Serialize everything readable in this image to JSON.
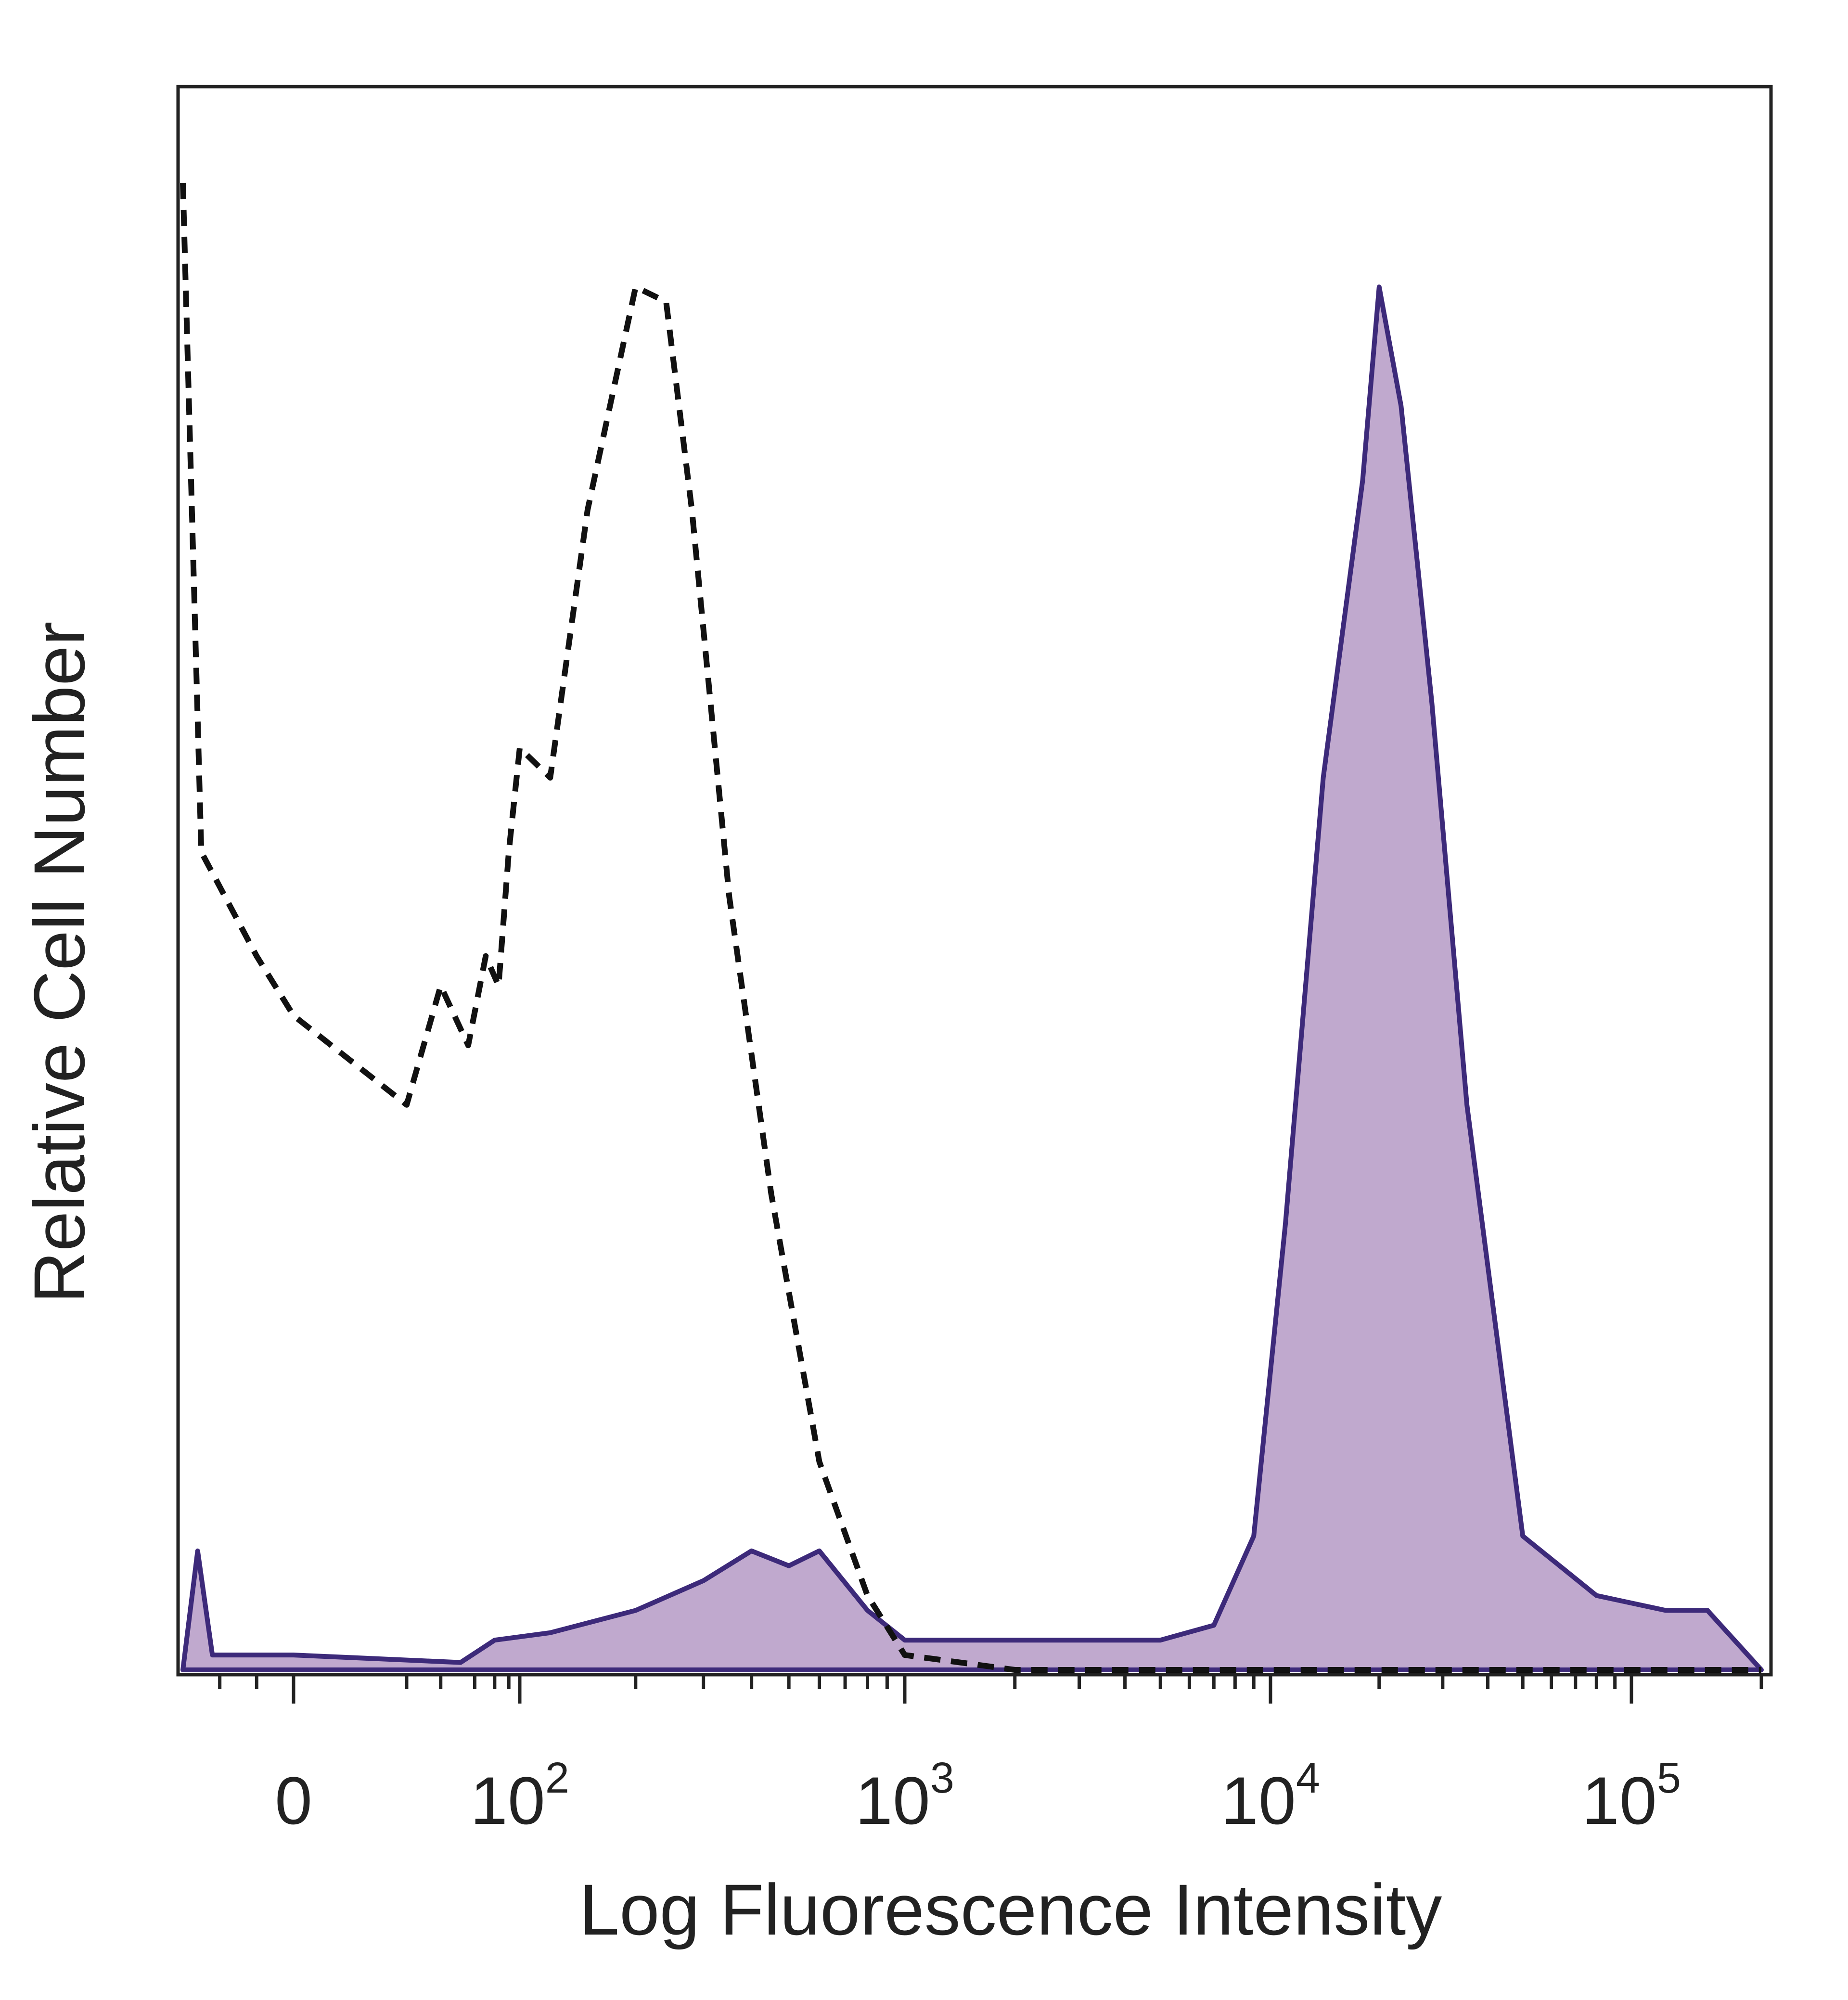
{
  "chart_data": {
    "type": "area",
    "title": "",
    "xlabel": "Log Fluorescence Intensity",
    "ylabel": "Relative Cell Number",
    "x_scale": "biexponential",
    "xlim": [
      -30,
      200000
    ],
    "ylim": [
      0,
      100
    ],
    "x_ticks": [
      {
        "value": 0,
        "base": "0",
        "exp": ""
      },
      {
        "value": 100,
        "base": "10",
        "exp": "2"
      },
      {
        "value": 1000,
        "base": "10",
        "exp": "3"
      },
      {
        "value": 10000,
        "base": "10",
        "exp": "4"
      },
      {
        "value": 100000,
        "base": "10",
        "exp": "5"
      }
    ],
    "grid": false,
    "legend": "none",
    "series": [
      {
        "style": "dashed",
        "color": "#111111",
        "fill": "none",
        "points": [
          [
            -30,
            100
          ],
          [
            -25,
            55
          ],
          [
            -10,
            48
          ],
          [
            0,
            44
          ],
          [
            10,
            38
          ],
          [
            20,
            46
          ],
          [
            35,
            42
          ],
          [
            50,
            48
          ],
          [
            65,
            46
          ],
          [
            80,
            55
          ],
          [
            100,
            62
          ],
          [
            120,
            60
          ],
          [
            150,
            78
          ],
          [
            200,
            93
          ],
          [
            240,
            92
          ],
          [
            280,
            78
          ],
          [
            350,
            52
          ],
          [
            450,
            32
          ],
          [
            600,
            14
          ],
          [
            800,
            5
          ],
          [
            1000,
            1
          ],
          [
            2000,
            0
          ],
          [
            200000,
            0
          ]
        ]
      },
      {
        "style": "solid",
        "color": "#3d2a7a",
        "fill": "#b59ac6",
        "points": [
          [
            -30,
            0
          ],
          [
            -26,
            8
          ],
          [
            -22,
            1
          ],
          [
            0,
            1
          ],
          [
            30,
            0.5
          ],
          [
            60,
            2
          ],
          [
            120,
            2.5
          ],
          [
            200,
            4
          ],
          [
            300,
            6
          ],
          [
            400,
            8
          ],
          [
            500,
            7
          ],
          [
            600,
            8
          ],
          [
            800,
            4
          ],
          [
            1000,
            2
          ],
          [
            2000,
            2
          ],
          [
            5000,
            2
          ],
          [
            7000,
            3
          ],
          [
            9000,
            9
          ],
          [
            11000,
            30
          ],
          [
            14000,
            60
          ],
          [
            18000,
            80
          ],
          [
            20000,
            93
          ],
          [
            23000,
            85
          ],
          [
            28000,
            65
          ],
          [
            35000,
            38
          ],
          [
            50000,
            9
          ],
          [
            80000,
            5
          ],
          [
            120000,
            4
          ],
          [
            150000,
            4
          ],
          [
            200000,
            0
          ]
        ]
      }
    ]
  }
}
